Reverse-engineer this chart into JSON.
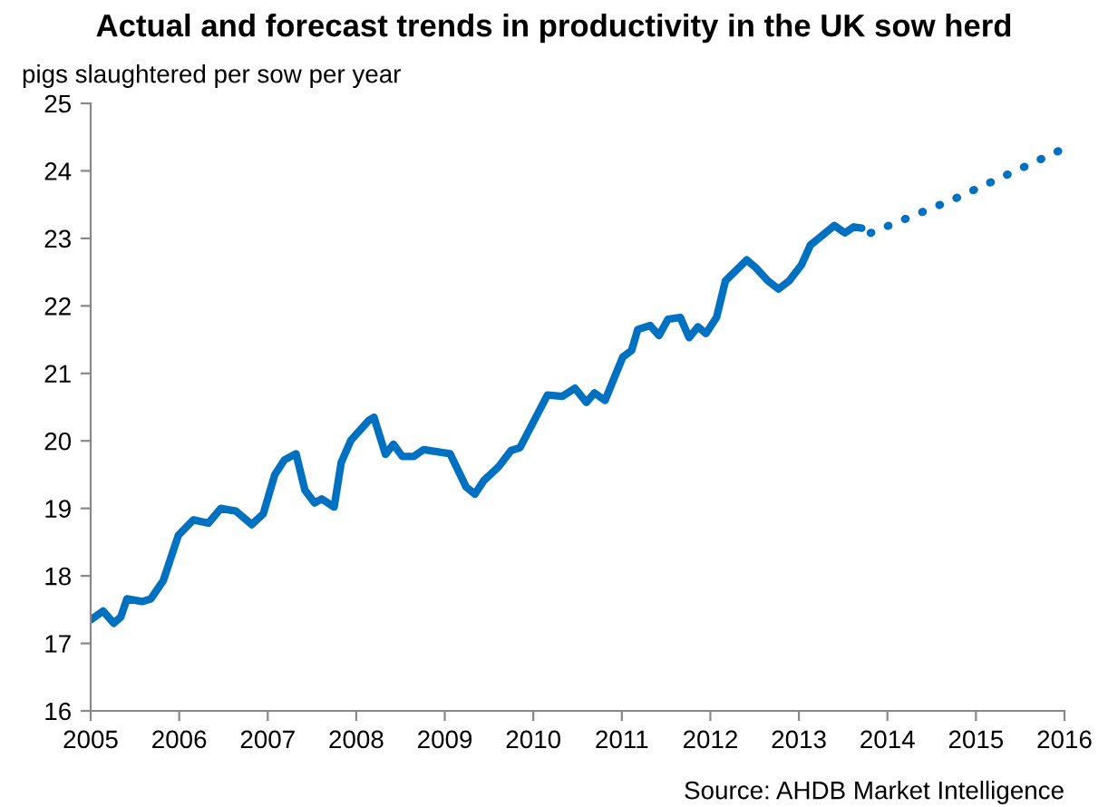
{
  "chart_data": {
    "type": "line",
    "title": "Actual and forecast trends in productivity in the UK sow herd",
    "ylabel": "pigs slaughtered per sow per year",
    "annotations": [
      "Source: AHDB Market Intelligence"
    ],
    "xlim": [
      2005,
      2016
    ],
    "xticks": [
      2005,
      2006,
      2007,
      2008,
      2009,
      2010,
      2011,
      2012,
      2013,
      2014,
      2015,
      2016
    ],
    "ylim": [
      16,
      25
    ],
    "yticks": [
      16,
      17,
      18,
      19,
      20,
      21,
      22,
      23,
      24,
      25
    ],
    "grid": false,
    "legend": false,
    "marker": "none",
    "series": [
      {
        "color": "#0070c0",
        "line_style": "solid",
        "x": [
          2005.0,
          2005.14,
          2005.26,
          2005.34,
          2005.41,
          2005.58,
          2005.68,
          2005.82,
          2005.99,
          2006.16,
          2006.33,
          2006.47,
          2006.64,
          2006.82,
          2006.95,
          2007.08,
          2007.19,
          2007.32,
          2007.42,
          2007.53,
          2007.61,
          2007.75,
          2007.83,
          2007.94,
          2008.14,
          2008.2,
          2008.33,
          2008.42,
          2008.52,
          2008.65,
          2008.76,
          2009.06,
          2009.24,
          2009.34,
          2009.44,
          2009.61,
          2009.75,
          2009.85,
          2010.16,
          2010.33,
          2010.47,
          2010.6,
          2010.69,
          2010.81,
          2011.01,
          2011.11,
          2011.18,
          2011.32,
          2011.42,
          2011.52,
          2011.66,
          2011.76,
          2011.86,
          2011.95,
          2012.07,
          2012.17,
          2012.41,
          2012.51,
          2012.65,
          2012.77,
          2012.89,
          2013.03,
          2013.13,
          2013.26,
          2013.4,
          2013.52,
          2013.62,
          2013.71
        ],
        "values": [
          17.35,
          17.48,
          17.3,
          17.39,
          17.66,
          17.62,
          17.66,
          17.93,
          18.6,
          18.83,
          18.78,
          19.0,
          18.96,
          18.76,
          18.92,
          19.5,
          19.72,
          19.81,
          19.27,
          19.08,
          19.14,
          19.02,
          19.68,
          20.01,
          20.3,
          20.35,
          19.8,
          19.95,
          19.77,
          19.77,
          19.87,
          19.81,
          19.32,
          19.21,
          19.41,
          19.62,
          19.86,
          19.9,
          20.68,
          20.66,
          20.78,
          20.57,
          20.71,
          20.6,
          21.24,
          21.34,
          21.65,
          21.71,
          21.56,
          21.8,
          21.83,
          21.53,
          21.69,
          21.59,
          21.83,
          22.37,
          22.68,
          22.57,
          22.37,
          22.25,
          22.37,
          22.61,
          22.9,
          23.04,
          23.19,
          23.08,
          23.17,
          23.15
        ]
      },
      {
        "color": "#0070c0",
        "line_style": "dotted",
        "x": [
          2013.81,
          2014.75,
          2015.96
        ],
        "values": [
          23.08,
          23.58,
          24.31
        ]
      }
    ]
  }
}
